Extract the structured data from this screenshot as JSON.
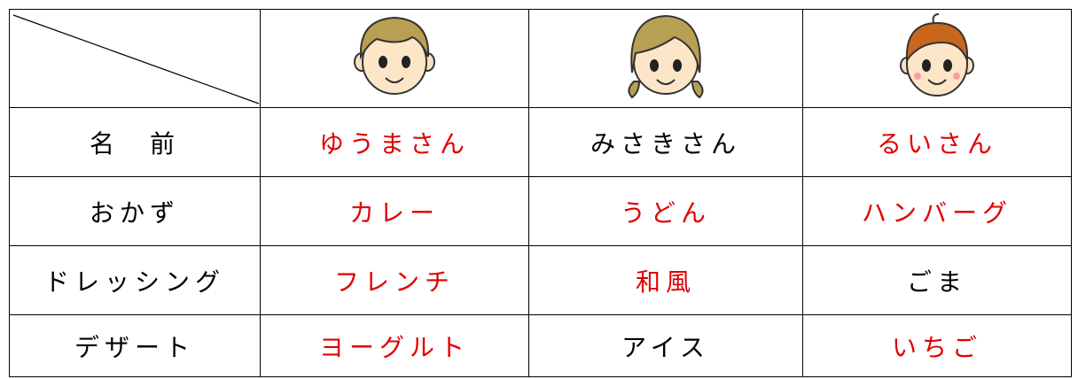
{
  "table": {
    "rows": [
      [
        "名　前",
        "ゆうまさん",
        "みさきさん",
        "るいさん"
      ],
      [
        "おかず",
        "カレー",
        "うどん",
        "ハンバーグ"
      ],
      [
        "ドレッシング",
        "フレンチ",
        "和風",
        "ごま"
      ],
      [
        "デザート",
        "ヨーグルト",
        "アイス",
        "いちご"
      ]
    ]
  }
}
